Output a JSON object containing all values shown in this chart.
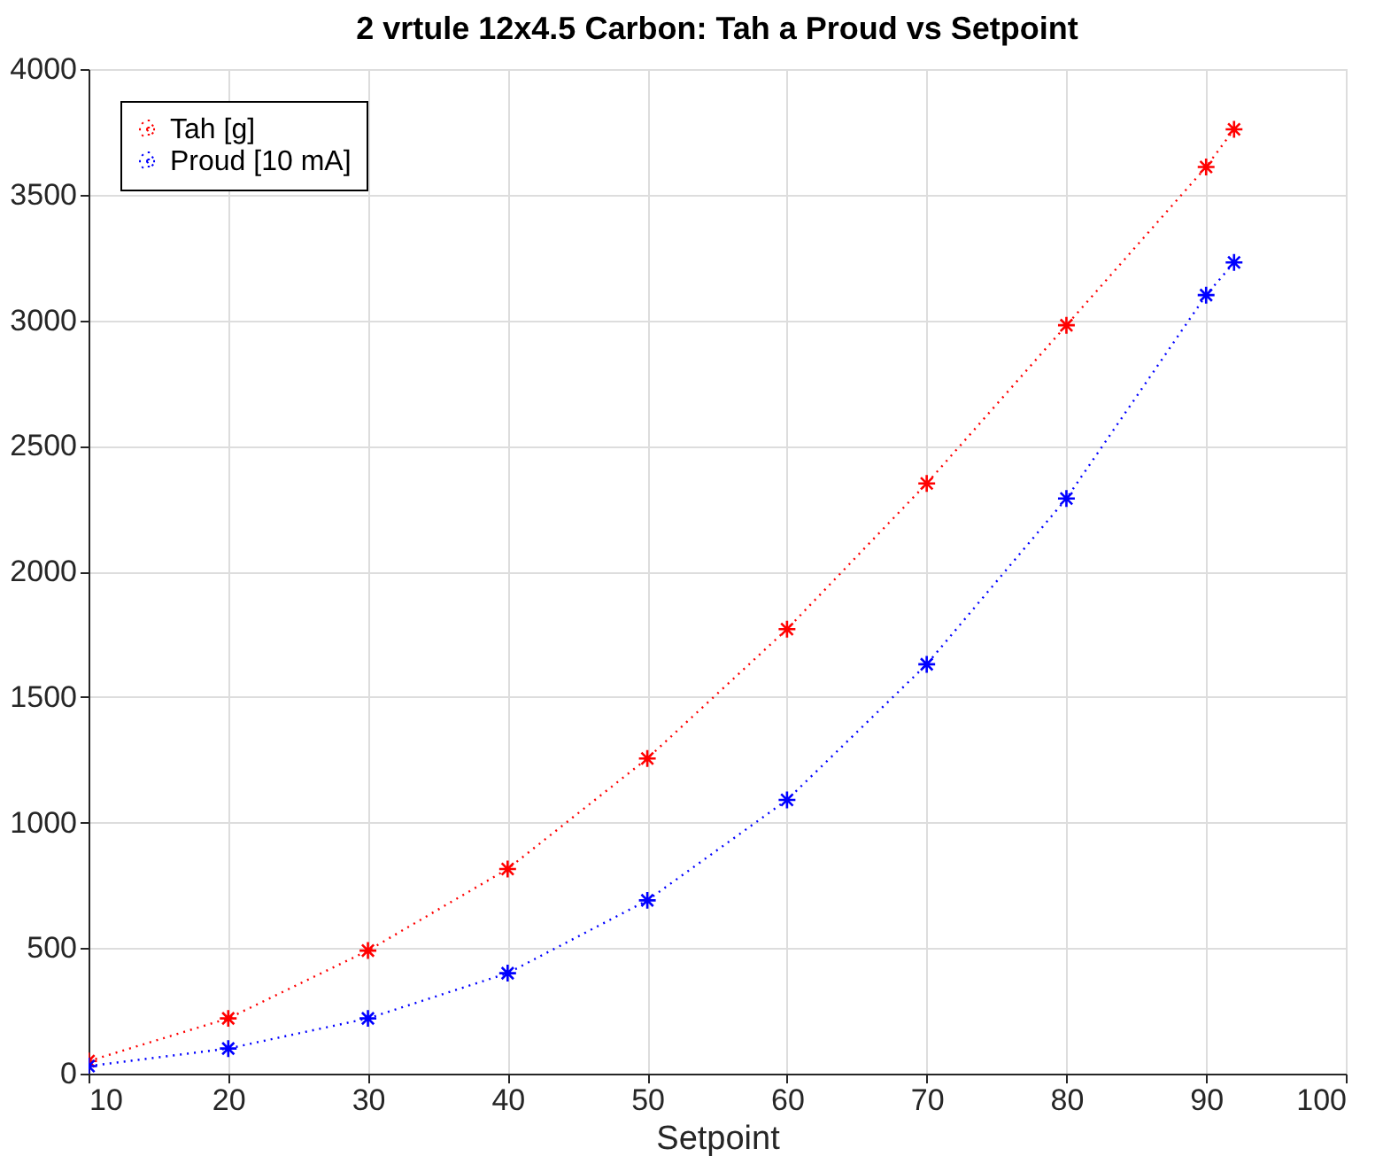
{
  "chart_data": {
    "type": "line",
    "title": "2 vrtule 12x4.5 Carbon: Tah a Proud vs Setpoint",
    "xlabel": "Setpoint",
    "xlim": [
      10,
      100
    ],
    "xticks": [
      10,
      20,
      30,
      40,
      50,
      60,
      70,
      80,
      90,
      100
    ],
    "ylim": [
      0,
      4000
    ],
    "yticks": [
      0,
      500,
      1000,
      1500,
      2000,
      2500,
      3000,
      3500,
      4000
    ],
    "grid": true,
    "legend": "top left",
    "marker": "cross",
    "line_style": "dotted",
    "series": [
      {
        "name": "Tah [g]",
        "color": "#ff0000",
        "x": [
          10,
          20,
          30,
          40,
          50,
          60,
          70,
          80,
          90,
          92
        ],
        "values": [
          50,
          220,
          490,
          815,
          1255,
          1770,
          2350,
          2980,
          3610,
          3760
        ]
      },
      {
        "name": "Proud [10 mA]",
        "color": "#0000ff",
        "x": [
          10,
          20,
          30,
          40,
          50,
          60,
          70,
          80,
          90,
          92
        ],
        "values": [
          30,
          100,
          220,
          400,
          690,
          1090,
          1630,
          2290,
          3100,
          3230
        ]
      }
    ]
  }
}
